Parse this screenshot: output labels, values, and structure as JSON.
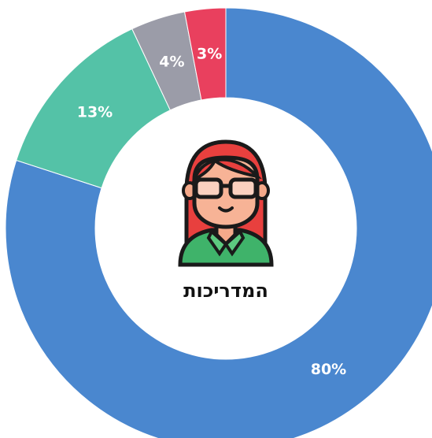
{
  "chart_data": {
    "type": "donut",
    "title": "המדריכות",
    "values": [
      80,
      13,
      4,
      3
    ],
    "value_labels": [
      "80%",
      "13%",
      "4%",
      "3%"
    ],
    "colors": [
      "#4a87cf",
      "#54c2a7",
      "#9b9ca8",
      "#e9405e"
    ]
  }
}
